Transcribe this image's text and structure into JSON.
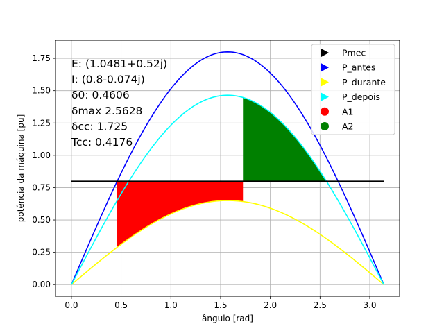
{
  "chart_data": {
    "type": "line",
    "xlabel": "ângulo [rad]",
    "ylabel": "potência da máquina [pu]",
    "xlim": [
      -0.16,
      3.3
    ],
    "ylim": [
      -0.09,
      1.89
    ],
    "x_ticks": [
      0.0,
      0.5,
      1.0,
      1.5,
      2.0,
      2.5,
      3.0
    ],
    "x_tick_labels": [
      "0.0",
      "0.5",
      "1.0",
      "1.5",
      "2.0",
      "2.5",
      "3.0"
    ],
    "y_ticks": [
      0.0,
      0.25,
      0.5,
      0.75,
      1.0,
      1.25,
      1.5,
      1.75
    ],
    "y_tick_labels": [
      "0.00",
      "0.25",
      "0.50",
      "0.75",
      "1.00",
      "1.25",
      "1.50",
      "1.75"
    ],
    "grid": true,
    "legend_position": "top-right",
    "pmec": 0.8,
    "delta0": 0.4606,
    "delta_cc": 1.725,
    "delta_max": 2.5628,
    "series": [
      {
        "name": "Pmec",
        "kind": "constant",
        "value": 0.8,
        "x_range": [
          0,
          3.1416
        ],
        "color": "#000000",
        "marker": "▶"
      },
      {
        "name": "P_antes",
        "kind": "sine",
        "amplitude": 1.8,
        "x_range": [
          0,
          3.1416
        ],
        "color": "#0000ff",
        "marker": "▶"
      },
      {
        "name": "P_durante",
        "kind": "sine",
        "amplitude": 0.65,
        "x_range": [
          0,
          3.1416
        ],
        "color": "#ffff00",
        "marker": "▶"
      },
      {
        "name": "P_depois",
        "kind": "sine",
        "amplitude": 1.465,
        "x_range": [
          0,
          3.1416
        ],
        "color": "#00ffff",
        "marker": "▶"
      }
    ],
    "areas": [
      {
        "name": "A1",
        "color": "#ff0000",
        "marker": "●"
      },
      {
        "name": "A2",
        "color": "#008000",
        "marker": "●"
      }
    ],
    "annotations": [
      "E: (1.0481+0.52j)",
      "I: (0.8-0.074j)",
      "δ0: 0.4606",
      "δmax 2.5628",
      "δcc: 1.725",
      "Tcc: 0.4176"
    ]
  }
}
